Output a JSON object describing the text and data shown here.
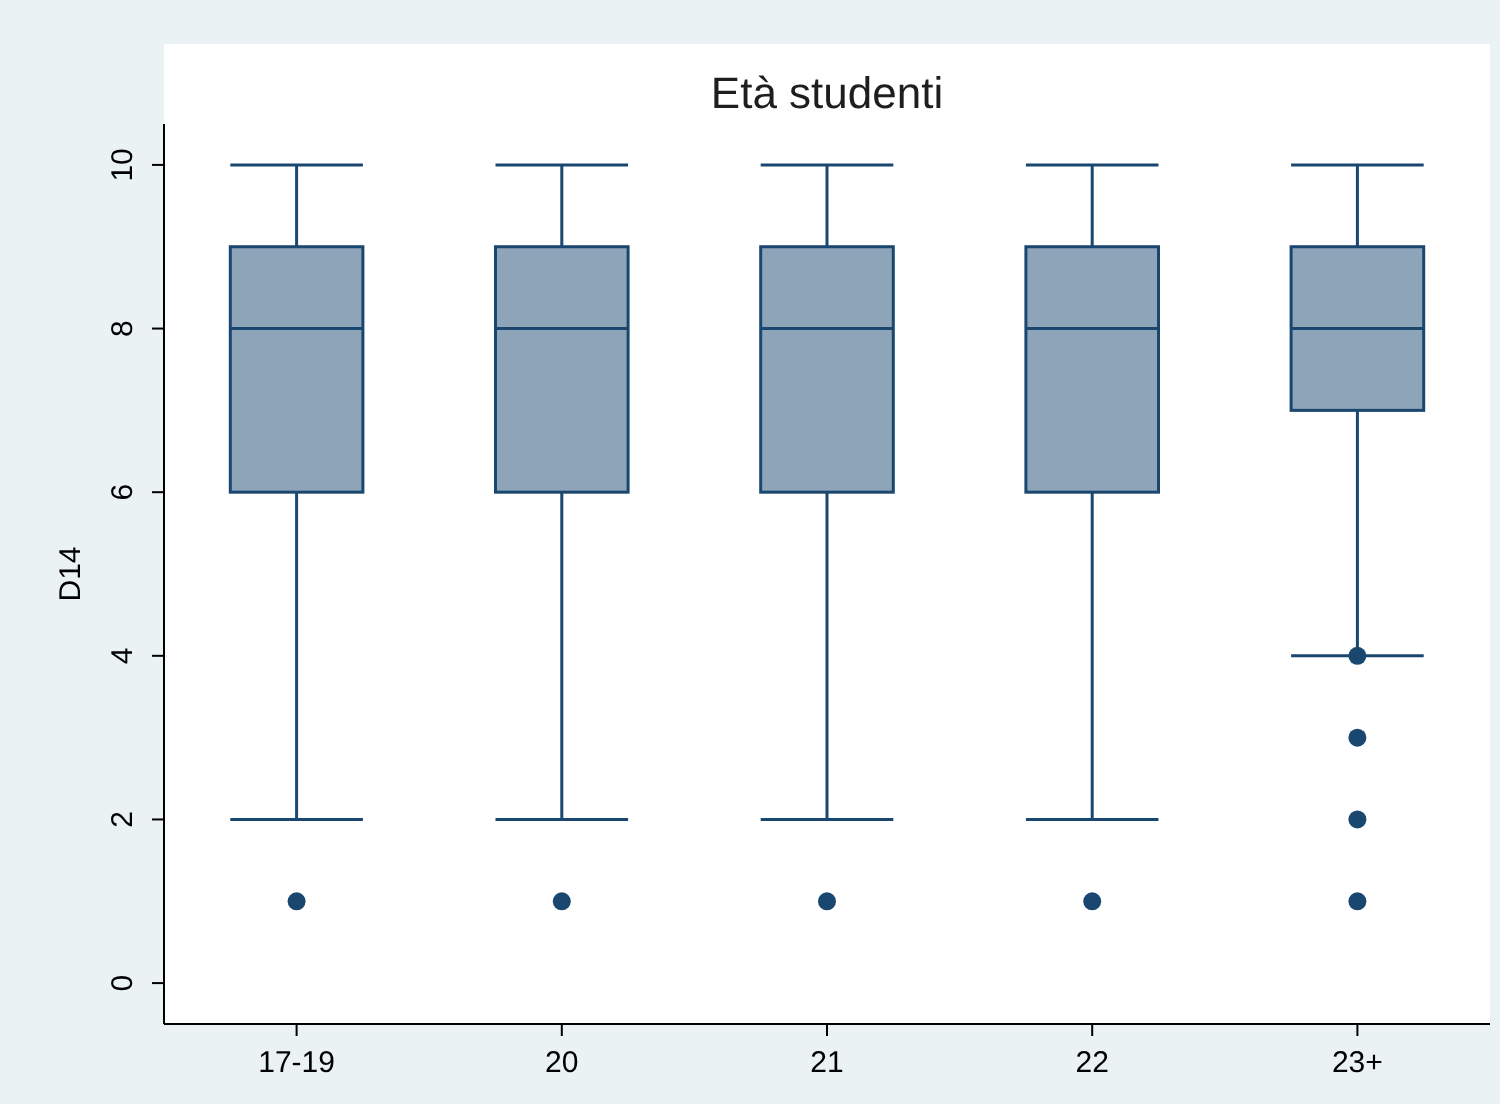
{
  "chart_data": {
    "type": "box",
    "title": "Età studenti",
    "ylabel": "D14",
    "categories": [
      "17-19",
      "20",
      "21",
      "22",
      "23+"
    ],
    "ylim": [
      -0.5,
      10.5
    ],
    "yticks": [
      0,
      2,
      4,
      6,
      8,
      10
    ],
    "grid": false,
    "color": "#8ea4b9",
    "marker": "circle",
    "boxes": [
      {
        "low": 2,
        "q1": 6,
        "median": 8,
        "q3": 9,
        "high": 10,
        "outliers": [
          1
        ]
      },
      {
        "low": 2,
        "q1": 6,
        "median": 8,
        "q3": 9,
        "high": 10,
        "outliers": [
          1
        ]
      },
      {
        "low": 2,
        "q1": 6,
        "median": 8,
        "q3": 9,
        "high": 10,
        "outliers": [
          1
        ]
      },
      {
        "low": 2,
        "q1": 6,
        "median": 8,
        "q3": 9,
        "high": 10,
        "outliers": [
          1
        ]
      },
      {
        "low": 4,
        "q1": 7,
        "median": 8,
        "q3": 9,
        "high": 10,
        "outliers": [
          4,
          3,
          2,
          1
        ]
      }
    ]
  }
}
